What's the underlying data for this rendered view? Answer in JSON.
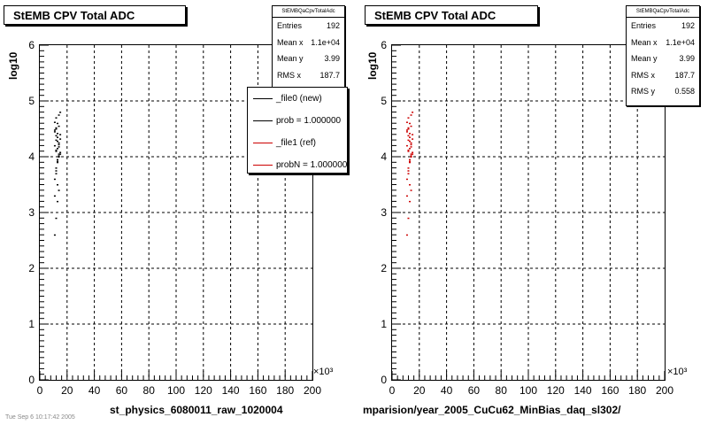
{
  "panels": [
    {
      "title": "StEMB CPV Total ADC",
      "stats": {
        "title": "StEMBQaCpvTotalAdc",
        "rows": [
          {
            "label": "Entries",
            "value": "192"
          },
          {
            "label": "Mean x",
            "value": "1.1e+04"
          },
          {
            "label": "Mean y",
            "value": "3.99"
          },
          {
            "label": "RMS x",
            "value": "187.7"
          }
        ]
      },
      "legend": [
        {
          "label": "_file0 (new)",
          "color": "#000000"
        },
        {
          "label": "prob = 1.000000",
          "color": "#000000"
        },
        {
          "label": "_file1 (ref)",
          "color": "#cc0000"
        },
        {
          "label": "probN = 1.000000",
          "color": "#cc0000"
        }
      ],
      "xaxis_title": "st_physics_6080011_raw_1020004",
      "yaxis_title": "log10",
      "x_multiplier": "×10³"
    },
    {
      "title": "StEMB CPV Total ADC",
      "stats": {
        "title": "StEMBQaCpvTotalAdc",
        "rows": [
          {
            "label": "Entries",
            "value": "192"
          },
          {
            "label": "Mean x",
            "value": "1.1e+04"
          },
          {
            "label": "Mean y",
            "value": "3.99"
          },
          {
            "label": "RMS x",
            "value": "187.7"
          },
          {
            "label": "RMS y",
            "value": "0.558"
          }
        ]
      },
      "xaxis_title": "mparision/year_2005_CuCu62_MinBias_daq_sl302/",
      "yaxis_title": "log10",
      "x_multiplier": "×10³"
    }
  ],
  "footer_text": "Tue Sep 6 10:17:42 2005",
  "chart_data": [
    {
      "type": "scatter",
      "title": "StEMB CPV Total ADC",
      "xlabel": "st_physics_6080011_raw_1020004",
      "ylabel": "log10",
      "xlim": [
        0,
        200
      ],
      "ylim": [
        0,
        6
      ],
      "x_ticks": [
        "0",
        "20",
        "40",
        "60",
        "80",
        "100",
        "120",
        "140",
        "160",
        "180",
        "200"
      ],
      "y_ticks": [
        "0",
        "1",
        "2",
        "3",
        "4",
        "5",
        "6"
      ],
      "grid": true,
      "legend_position": "top-right",
      "series": [
        {
          "name": "_file0 (new)",
          "color": "#000000",
          "x": [
            11,
            12,
            13,
            14,
            11,
            12,
            13,
            14,
            15,
            12,
            13,
            11,
            14,
            12,
            13,
            15,
            11,
            12,
            14,
            13,
            12,
            14,
            15,
            13,
            12,
            14,
            11,
            13,
            12,
            14,
            15,
            13,
            12,
            11,
            14,
            13,
            12,
            15,
            14,
            13,
            12,
            11
          ],
          "y": [
            2.6,
            2.9,
            3.2,
            3.4,
            3.6,
            3.8,
            3.9,
            4.0,
            4.05,
            4.1,
            4.15,
            4.2,
            4.25,
            4.3,
            4.35,
            4.4,
            4.45,
            4.5,
            4.55,
            4.6,
            4.7,
            4.75,
            4.8,
            3.5,
            3.7,
            4.05,
            3.3,
            3.95,
            4.12,
            4.22,
            4.32,
            4.42,
            4.52,
            4.62,
            4.02,
            3.92,
            3.75,
            4.08,
            4.18,
            4.28,
            4.38,
            4.48
          ]
        }
      ]
    },
    {
      "type": "scatter",
      "title": "StEMB CPV Total ADC",
      "xlabel": "mparision/year_2005_CuCu62_MinBias_daq_sl302/",
      "ylabel": "log10",
      "xlim": [
        0,
        200
      ],
      "ylim": [
        0,
        6
      ],
      "x_ticks": [
        "0",
        "20",
        "40",
        "60",
        "80",
        "100",
        "120",
        "140",
        "160",
        "180",
        "200"
      ],
      "y_ticks": [
        "0",
        "1",
        "2",
        "3",
        "4",
        "5",
        "6"
      ],
      "grid": true,
      "series": [
        {
          "color": "#cc0000",
          "x": [
            11,
            12,
            13,
            14,
            11,
            12,
            13,
            14,
            15,
            12,
            13,
            11,
            14,
            12,
            13,
            15,
            11,
            12,
            14,
            13,
            12,
            14,
            15,
            13,
            12,
            14,
            11,
            13,
            12,
            14,
            15,
            13,
            12,
            11,
            14,
            13,
            12,
            15,
            14,
            13,
            12,
            11
          ],
          "y": [
            2.6,
            2.9,
            3.2,
            3.4,
            3.6,
            3.8,
            3.9,
            4.0,
            4.05,
            4.1,
            4.15,
            4.2,
            4.25,
            4.3,
            4.35,
            4.4,
            4.45,
            4.5,
            4.55,
            4.6,
            4.7,
            4.75,
            4.8,
            3.5,
            3.7,
            4.05,
            3.3,
            3.95,
            4.12,
            4.22,
            4.32,
            4.42,
            4.52,
            4.62,
            4.02,
            3.92,
            3.75,
            4.08,
            4.18,
            4.28,
            4.38,
            4.48
          ]
        }
      ]
    }
  ]
}
